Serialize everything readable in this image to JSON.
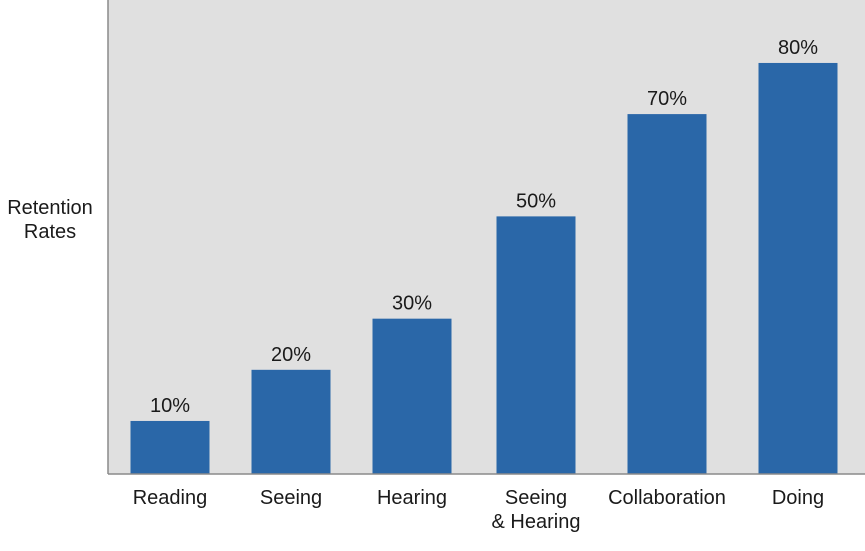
{
  "chart_data": {
    "type": "bar",
    "title": "",
    "xlabel": "",
    "ylabel": "Retention\nRates",
    "ylim": [
      0,
      100
    ],
    "grid": false,
    "legend": "none",
    "categories": [
      "Reading",
      "Seeing",
      "Hearing",
      "Seeing\n& Hearing",
      "Collaboration",
      "Doing"
    ],
    "values": [
      10,
      20,
      30,
      50,
      70,
      80
    ],
    "value_labels": [
      "10%",
      "20%",
      "30%",
      "50%",
      "70%",
      "80%"
    ],
    "colors": {
      "bar": "#2a67a8",
      "plot_background": "#e0e0e0",
      "axis": "#8a8a8a",
      "text": "#1a1a1a"
    }
  }
}
